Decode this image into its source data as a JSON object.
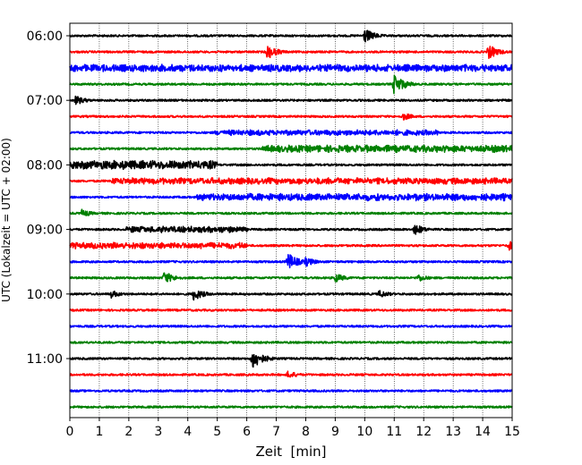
{
  "chart_data": {
    "type": "line",
    "subtype": "helicorder",
    "title": "",
    "xlabel": "Zeit  [min]",
    "ylabel": "UTC (Lokalzeit = UTC + 02:00)",
    "xlim": [
      0,
      15
    ],
    "x_ticks": [
      0,
      1,
      2,
      3,
      4,
      5,
      6,
      7,
      8,
      9,
      10,
      11,
      12,
      13,
      14,
      15
    ],
    "y_tick_labels": [
      "06:00",
      "07:00",
      "08:00",
      "09:00",
      "10:00",
      "11:00"
    ],
    "lines_per_hour": 4,
    "start_time": "06:00",
    "grid": "vertical dotted",
    "trace_colors": [
      "#000000",
      "#ff0000",
      "#0000ff",
      "#008000"
    ],
    "traces": [
      {
        "time": "06:00",
        "events": [
          {
            "minute": 10.0,
            "amplitude": 0.9
          }
        ]
      },
      {
        "time": "06:15",
        "events": [
          {
            "minute": 6.7,
            "amplitude": 0.9
          },
          {
            "minute": 14.2,
            "amplitude": 0.9
          }
        ]
      },
      {
        "time": "06:30",
        "events": [],
        "bursts": [
          {
            "from": 0,
            "to": 15,
            "amplitude": 0.45
          }
        ]
      },
      {
        "time": "06:45",
        "events": [
          {
            "minute": 11.0,
            "amplitude": 1.3
          }
        ]
      },
      {
        "time": "07:00",
        "events": [
          {
            "minute": 0.2,
            "amplitude": 0.6
          }
        ]
      },
      {
        "time": "07:15",
        "events": [
          {
            "minute": 11.3,
            "amplitude": 0.5
          }
        ]
      },
      {
        "time": "07:30",
        "events": [],
        "bursts": [
          {
            "from": 4.9,
            "to": 12.5,
            "amplitude": 0.35
          }
        ]
      },
      {
        "time": "07:45",
        "events": [],
        "bursts": [
          {
            "from": 6.5,
            "to": 15,
            "amplitude": 0.45
          }
        ]
      },
      {
        "time": "08:00",
        "events": [],
        "bursts": [
          {
            "from": 0,
            "to": 5.0,
            "amplitude": 0.55
          }
        ]
      },
      {
        "time": "08:15",
        "events": [],
        "bursts": [
          {
            "from": 1.4,
            "to": 15,
            "amplitude": 0.4
          }
        ]
      },
      {
        "time": "08:30",
        "events": [],
        "bursts": [
          {
            "from": 4.3,
            "to": 15,
            "amplitude": 0.45
          }
        ]
      },
      {
        "time": "08:45",
        "events": [
          {
            "minute": 0.4,
            "amplitude": 0.5
          }
        ]
      },
      {
        "time": "09:00",
        "events": [
          {
            "minute": 11.7,
            "amplitude": 0.7
          }
        ],
        "bursts": [
          {
            "from": 1.9,
            "to": 6.0,
            "amplitude": 0.4
          }
        ]
      },
      {
        "time": "09:15",
        "events": [
          {
            "minute": 14.9,
            "amplitude": 0.6
          }
        ],
        "bursts": [
          {
            "from": 0,
            "to": 6.0,
            "amplitude": 0.4
          }
        ]
      },
      {
        "time": "09:30",
        "events": [
          {
            "minute": 7.4,
            "amplitude": 1.1
          },
          {
            "minute": 8.0,
            "amplitude": 0.6
          }
        ]
      },
      {
        "time": "09:45",
        "events": [
          {
            "minute": 3.2,
            "amplitude": 0.8
          },
          {
            "minute": 9.0,
            "amplitude": 0.6
          },
          {
            "minute": 11.8,
            "amplitude": 0.5
          }
        ]
      },
      {
        "time": "10:00",
        "events": [
          {
            "minute": 1.4,
            "amplitude": 0.5
          },
          {
            "minute": 4.2,
            "amplitude": 0.8
          },
          {
            "minute": 10.5,
            "amplitude": 0.5
          }
        ]
      },
      {
        "time": "10:15",
        "events": []
      },
      {
        "time": "10:30",
        "events": []
      },
      {
        "time": "10:45",
        "events": []
      },
      {
        "time": "11:00",
        "events": [
          {
            "minute": 6.2,
            "amplitude": 1.3
          }
        ]
      },
      {
        "time": "11:15",
        "events": [
          {
            "minute": 7.4,
            "amplitude": 0.5
          }
        ]
      },
      {
        "time": "11:30",
        "events": []
      },
      {
        "time": "11:45",
        "events": []
      }
    ]
  }
}
